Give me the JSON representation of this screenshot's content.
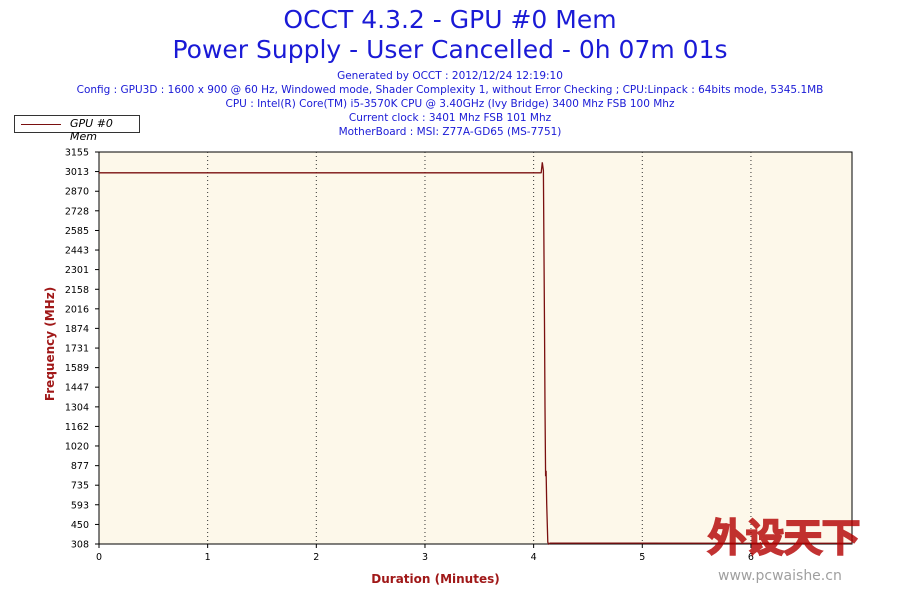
{
  "header": {
    "title_line1": "OCCT 4.3.2 - GPU #0 Mem",
    "title_line2": "Power Supply - User Cancelled - 0h 07m 01s",
    "generated": "Generated by OCCT : 2012/12/24 12:19:10",
    "config": "Config : GPU3D : 1600 x 900 @ 60 Hz, Windowed mode, Shader Complexity 1, without Error Checking ; CPU:Linpack : 64bits mode, 5345.1MB",
    "cpu": "CPU : Intel(R) Core(TM) i5-3570K CPU @ 3.40GHz (Ivy Bridge) 3400 Mhz FSB 100 Mhz",
    "clock": "Current clock : 3401 Mhz FSB 101 Mhz",
    "motherboard": "MotherBoard : MSI: Z77A-GD65 (MS-7751)"
  },
  "watermark": {
    "brand": "外设天下",
    "url": "www.pcwaishe.cn"
  },
  "chart_data": {
    "type": "line",
    "title": "OCCT 4.3.2 - GPU #0 Mem",
    "xlabel": "Duration (Minutes)",
    "ylabel": "Frequency (MHz)",
    "xlim": [
      0,
      6.93
    ],
    "ylim": [
      308,
      3155
    ],
    "xticks": [
      "0",
      "1",
      "2",
      "3",
      "4",
      "5",
      "6"
    ],
    "yticks": [
      "3155",
      "3013",
      "2870",
      "2728",
      "2585",
      "2443",
      "2301",
      "2158",
      "2016",
      "1874",
      "1731",
      "1589",
      "1447",
      "1304",
      "1162",
      "1020",
      "877",
      "735",
      "593",
      "450",
      "308"
    ],
    "grid": true,
    "legend_position": "top-left",
    "colors": {
      "series": "#7a1010",
      "plot_bg": "#fdf8ea",
      "title": "#1a1ad6",
      "axis_title": "#a01818"
    },
    "series": [
      {
        "name": "GPU #0 Mem",
        "x": [
          0,
          4.05,
          4.06,
          4.07,
          4.08,
          4.09,
          4.095,
          4.1,
          4.105,
          4.11,
          4.115,
          4.12,
          4.13,
          4.14,
          4.15,
          5.0,
          6.0,
          6.93
        ],
        "y": [
          3004,
          3004,
          3004,
          3005,
          3080,
          3020,
          2400,
          1900,
          1300,
          800,
          840,
          600,
          320,
          308,
          314,
          314,
          313,
          313
        ]
      }
    ]
  }
}
